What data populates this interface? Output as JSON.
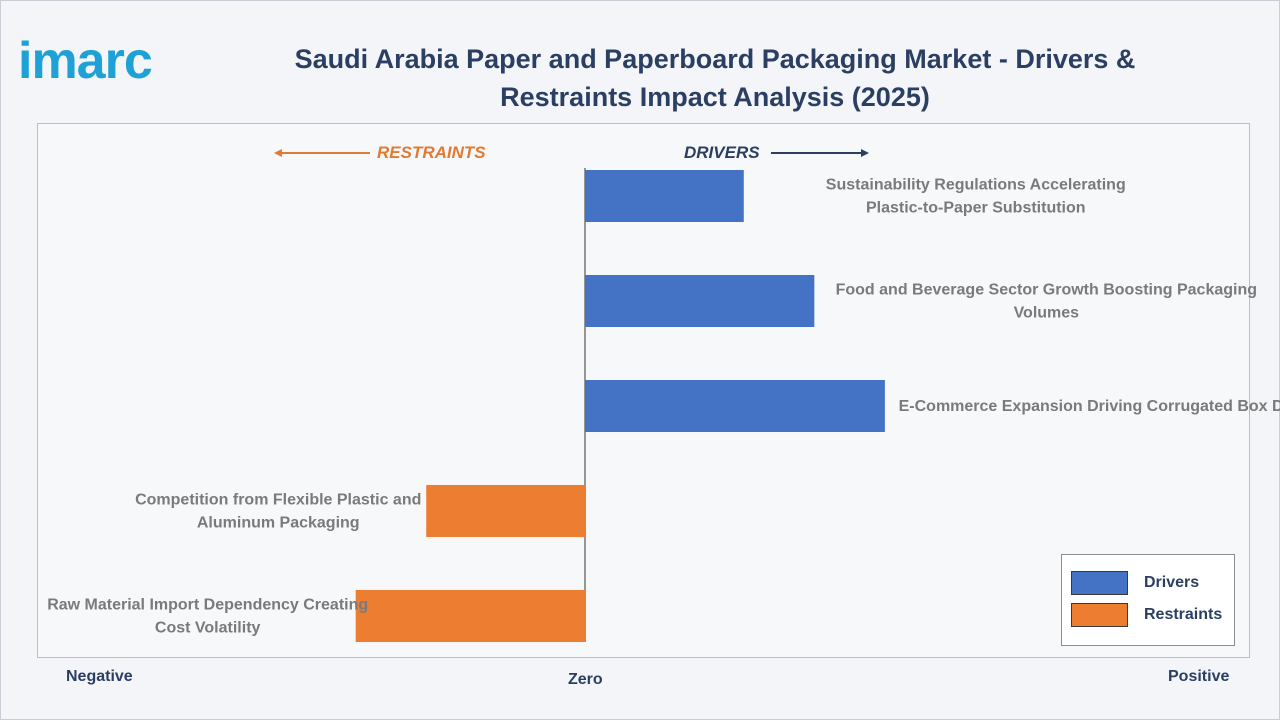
{
  "brand": {
    "logo_text": "imarc"
  },
  "title": "Saudi Arabia Paper and Paperboard Packaging Market - Drivers & Restraints Impact Analysis (2025)",
  "directions": {
    "restraints": "RESTRAINTS",
    "drivers": "DRIVERS"
  },
  "axis_words": {
    "negative": "Negative",
    "zero": "Zero",
    "positive": "Positive"
  },
  "legend": {
    "drivers": "Drivers",
    "restraints": "Restraints"
  },
  "colors": {
    "drivers": "#4472c4",
    "restraints": "#ed7d31",
    "title": "#2b3f63",
    "logo": "#1da1d6"
  },
  "chart_data": {
    "type": "bar",
    "orientation": "horizontal",
    "xlim": [
      -1,
      1
    ],
    "grid": false,
    "legend_position": "bottom-right",
    "categories": [
      "Sustainability Regulations Accelerating Plastic-to-Paper Substitution",
      "Food and Beverage Sector Growth Boosting Packaging Volumes",
      "E-Commerce Expansion Driving Corrugated Box Demand",
      "Competition from Flexible Plastic and Aluminum Packaging",
      "Raw Material Import Dependency Creating Cost Volatility"
    ],
    "series": [
      {
        "name": "Drivers",
        "values": [
          0.36,
          0.52,
          0.68,
          null,
          null
        ]
      },
      {
        "name": "Restraints",
        "values": [
          null,
          null,
          null,
          -0.36,
          -0.52
        ]
      }
    ]
  }
}
